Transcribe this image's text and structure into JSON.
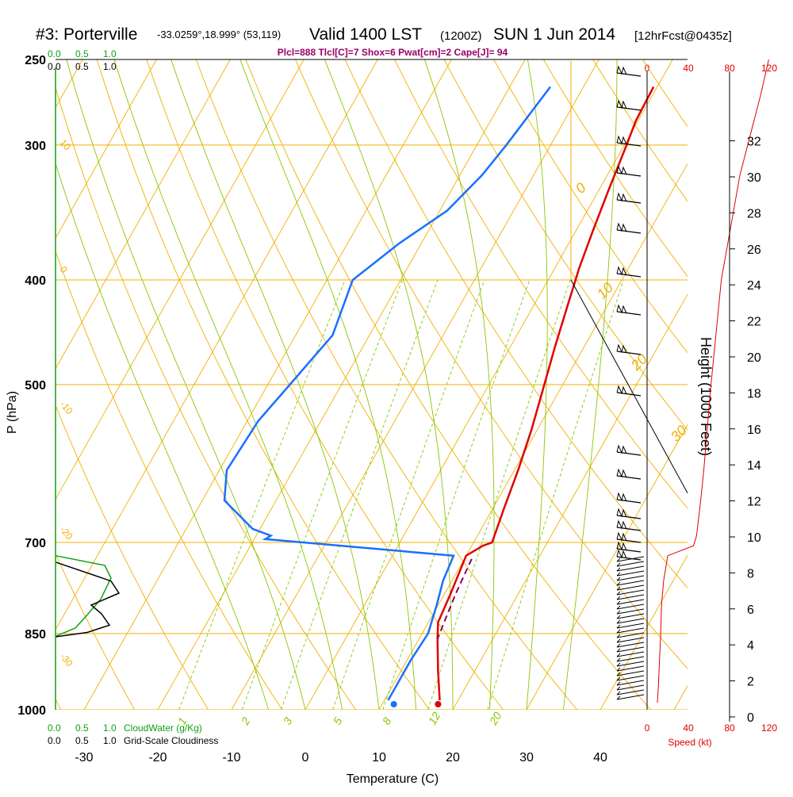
{
  "header": {
    "station": "#3: Porterville",
    "coords": "-33.0259°,18.999° (53,119)",
    "valid": "Valid 1400 LST",
    "zulu": "(1200Z)",
    "date": "SUN 1 Jun 2014",
    "forecast": "[12hrFcst@0435z]",
    "params": "Plcl=888 Tlcl[C]=7 Shox=6 Pwat[cm]=2 Cape[J]= 94"
  },
  "colors": {
    "isotherm": "#f0b000",
    "dry_adiabat": "#f0b000",
    "moist_adiabat": "#88c800",
    "mixing_ratio": "#88c800",
    "temperature": "#e00000",
    "dewpoint": "#1a70ff",
    "parcel": "#8b0060",
    "cloud_water": "#10a010",
    "wind_speed": "#e00000",
    "params_text": "#990066"
  },
  "cloud_scale": {
    "green_ticks": [
      "0.0",
      "0.5",
      "1.0"
    ],
    "black_ticks": [
      "0.0",
      "0.5",
      "1.0"
    ],
    "cloudwater_label": "CloudWater (g/Kg)",
    "cloudiness_label": "Grid-Scale Cloudiness"
  },
  "speed_scale": {
    "ticks": [
      "0",
      "40",
      "80",
      "120"
    ],
    "label": "Speed (kt)"
  },
  "chart_data": {
    "type": "line",
    "title": "#3: Porterville",
    "xlabel": "Temperature (C)",
    "ylabel": "P (hPa)",
    "y2label": "Height (1000 Feet)",
    "xlim": [
      -34,
      51
    ],
    "ylim": [
      1000,
      250
    ],
    "y_log": true,
    "x_ticks": [
      "-30",
      "-20",
      "-10",
      "0",
      "10",
      "20",
      "30",
      "40"
    ],
    "p_ticks": [
      "250",
      "300",
      "400",
      "500",
      "700",
      "850",
      "1000"
    ],
    "height_ticks": [
      "0",
      "2",
      "4",
      "6",
      "8",
      "10",
      "12",
      "14",
      "16",
      "18",
      "20",
      "22",
      "24",
      "26",
      "28",
      "30",
      "32"
    ],
    "dry_adiabat_labels": [
      "-10",
      "0",
      "10",
      "20",
      "30"
    ],
    "moist_adiabat_labels": [
      "10",
      "0",
      "-10",
      "-20",
      "-30"
    ],
    "mixing_ratio_labels": [
      "1",
      "2",
      "3",
      "5",
      "8",
      "12",
      "20"
    ],
    "series": [
      {
        "name": "Temperature",
        "points": [
          [
            -0.5,
            265
          ],
          [
            -0.3,
            285
          ],
          [
            0.3,
            300
          ],
          [
            1.3,
            330
          ],
          [
            2.3,
            360
          ],
          [
            3.3,
            390
          ],
          [
            4.5,
            420
          ],
          [
            6.0,
            460
          ],
          [
            7.5,
            500
          ],
          [
            9.2,
            550
          ],
          [
            10.5,
            600
          ],
          [
            11.5,
            650
          ],
          [
            12.5,
            700
          ],
          [
            11.5,
            705
          ],
          [
            10.0,
            720
          ],
          [
            10.8,
            780
          ],
          [
            11.3,
            830
          ],
          [
            12.5,
            860
          ],
          [
            15.0,
            920
          ],
          [
            17.5,
            980
          ]
        ]
      },
      {
        "name": "Dewpoint",
        "points": [
          [
            -14.5,
            265
          ],
          [
            -16,
            300
          ],
          [
            -17,
            320
          ],
          [
            -19,
            345
          ],
          [
            -23,
            370
          ],
          [
            -26.5,
            400
          ],
          [
            -25,
            450
          ],
          [
            -27,
            500
          ],
          [
            -28.5,
            540
          ],
          [
            -29,
            600
          ],
          [
            -27,
            640
          ],
          [
            -21,
            680
          ],
          [
            -18,
            690
          ],
          [
            -18.5,
            695
          ],
          [
            8.3,
            720
          ],
          [
            8.8,
            760
          ],
          [
            9.8,
            800
          ],
          [
            10.8,
            850
          ],
          [
            10.5,
            900
          ],
          [
            10.5,
            960
          ],
          [
            10.5,
            980
          ]
        ]
      },
      {
        "name": "Parcel",
        "points": [
          [
            11,
            725
          ],
          [
            11.5,
            780
          ],
          [
            12,
            820
          ],
          [
            12.5,
            860
          ]
        ]
      },
      {
        "name": "Cloud water",
        "points": [
          [
            0.0,
            720
          ],
          [
            0.62,
            735
          ],
          [
            0.7,
            755
          ],
          [
            0.57,
            790
          ],
          [
            0.38,
            820
          ],
          [
            0.25,
            840
          ],
          [
            0.0,
            855
          ]
        ]
      },
      {
        "name": "Grid-scale cloudiness",
        "points": [
          [
            0.0,
            730
          ],
          [
            0.7,
            760
          ],
          [
            0.8,
            780
          ],
          [
            0.45,
            800
          ],
          [
            0.58,
            815
          ],
          [
            0.68,
            835
          ],
          [
            0.4,
            848
          ],
          [
            0.0,
            856
          ]
        ]
      },
      {
        "name": "Wind speed",
        "points": [
          [
            10,
            985
          ],
          [
            11,
            950
          ],
          [
            12,
            900
          ],
          [
            13,
            860
          ],
          [
            14,
            800
          ],
          [
            16,
            760
          ],
          [
            20,
            720
          ],
          [
            45,
            705
          ],
          [
            48,
            690
          ],
          [
            52,
            640
          ],
          [
            55,
            600
          ],
          [
            62,
            500
          ],
          [
            72,
            400
          ],
          [
            90,
            320
          ],
          [
            110,
            270
          ],
          [
            118,
            250
          ]
        ]
      }
    ],
    "surface": {
      "temperature": 18,
      "dewpoint": 12
    }
  }
}
